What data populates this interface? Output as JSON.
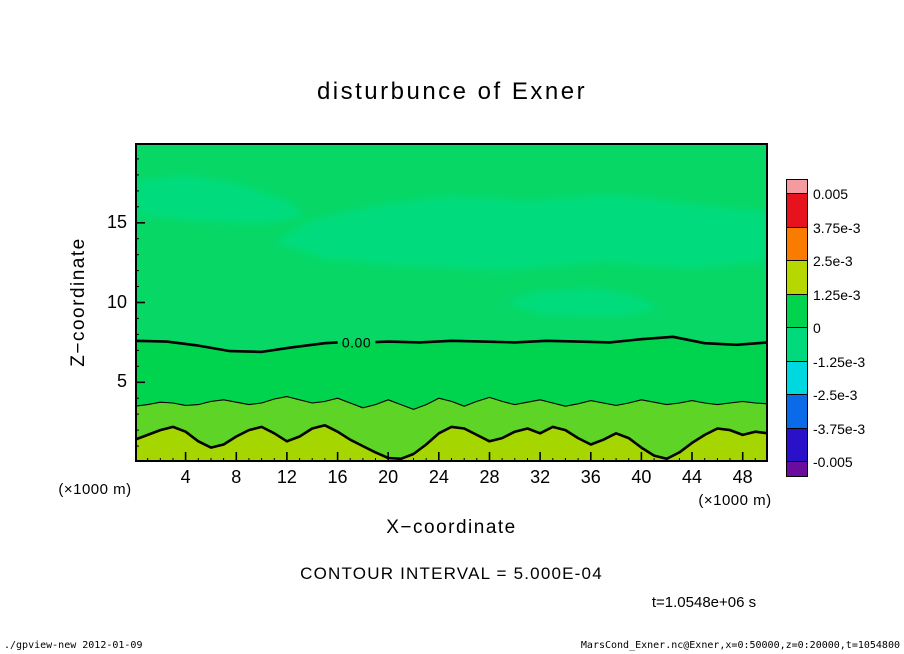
{
  "page": {
    "background": "#ffffff"
  },
  "footer": {
    "left": "./gpview-new  2012-01-09",
    "right": "MarsCond_Exner.nc@Exner,x=0:50000,z=0:20000,t=1054800"
  },
  "chart_data": {
    "type": "heatmap",
    "title": "disturbunce of Exner",
    "xlabel": "X−coordinate",
    "ylabel": "Z−coordinate",
    "unit_label": "(×1000 m)",
    "contour_interval_label": "CONTOUR INTERVAL = 5.000E-04",
    "time_label": "t=1.0548e+06 s",
    "xlim": [
      0,
      50
    ],
    "ylim": [
      0,
      20
    ],
    "x_ticks": [
      4,
      8,
      12,
      16,
      20,
      24,
      28,
      32,
      36,
      40,
      44,
      48
    ],
    "y_ticks": [
      5,
      10,
      15
    ],
    "grid": false,
    "legend_position": "right-colorbar",
    "field_colors": {
      "upper": "#07d765",
      "patch": "#00dc7d",
      "lower": "#00d44f",
      "mid_band": "#5ed526",
      "bottom_band": "#a6d600"
    },
    "colorbar": {
      "cap_top": "#f59aa0",
      "cell_colors": [
        "#e6131f",
        "#f97c00",
        "#b6d800",
        "#00d44f",
        "#00da7c",
        "#00d8e0",
        "#0a6ae8",
        "#2a10c8"
      ],
      "cap_bottom": "#6a0d9e",
      "labels": [
        "0.005",
        "3.75e-3",
        "2.5e-3",
        "1.25e-3",
        "0",
        "-1.25e-3",
        "-2.5e-3",
        "-3.75e-3",
        "-0.005"
      ],
      "cap_height": 14,
      "cell_height": 33.5
    },
    "contour_labels": [
      {
        "text": "0.00",
        "x": 17.5,
        "z": 7.5
      }
    ],
    "contours": {
      "zero": {
        "level": 0,
        "label_gap": [
          16,
          19
        ],
        "points": [
          [
            0,
            7.6
          ],
          [
            2.5,
            7.55
          ],
          [
            5,
            7.3
          ],
          [
            7.5,
            6.95
          ],
          [
            10,
            6.9
          ],
          [
            12.5,
            7.2
          ],
          [
            15,
            7.45
          ],
          [
            16,
            7.5
          ],
          [
            17.5,
            7.5
          ],
          [
            19,
            7.52
          ],
          [
            20,
            7.55
          ],
          [
            22.5,
            7.5
          ],
          [
            25,
            7.6
          ],
          [
            27.5,
            7.55
          ],
          [
            30,
            7.5
          ],
          [
            32.5,
            7.6
          ],
          [
            35,
            7.55
          ],
          [
            37.5,
            7.5
          ],
          [
            40,
            7.7
          ],
          [
            42.5,
            7.85
          ],
          [
            45,
            7.45
          ],
          [
            47.5,
            7.35
          ],
          [
            50,
            7.5
          ]
        ]
      },
      "thin": {
        "level": 0.0005,
        "x_start": 0,
        "x_step": 1,
        "z": [
          3.5,
          3.6,
          3.75,
          3.7,
          3.55,
          3.6,
          3.8,
          3.9,
          3.75,
          3.6,
          3.7,
          3.95,
          4.1,
          3.9,
          3.7,
          3.8,
          4.0,
          3.7,
          3.4,
          3.6,
          3.9,
          3.6,
          3.3,
          3.6,
          4.0,
          3.8,
          3.5,
          3.8,
          4.05,
          3.8,
          3.6,
          3.75,
          3.9,
          3.7,
          3.5,
          3.65,
          3.85,
          3.7,
          3.55,
          3.7,
          3.9,
          3.75,
          3.6,
          3.7,
          3.85,
          3.7,
          3.6,
          3.7,
          3.8,
          3.7,
          3.65
        ]
      },
      "bottom": {
        "level": 0.001,
        "x_start": 0,
        "x_step": 1,
        "z": [
          1.4,
          1.7,
          2.0,
          2.2,
          1.9,
          1.3,
          0.9,
          1.1,
          1.6,
          2.0,
          2.2,
          1.8,
          1.3,
          1.6,
          2.1,
          2.3,
          1.9,
          1.4,
          1.0,
          0.6,
          0.25,
          0.2,
          0.5,
          1.1,
          1.8,
          2.2,
          2.1,
          1.7,
          1.3,
          1.5,
          1.9,
          2.1,
          1.8,
          2.2,
          2.0,
          1.5,
          1.1,
          1.4,
          1.8,
          1.5,
          0.9,
          0.4,
          0.2,
          0.6,
          1.2,
          1.7,
          2.1,
          2.0,
          1.7,
          1.9,
          1.8
        ]
      }
    },
    "patches": [
      [
        [
          11,
          13.8
        ],
        [
          14,
          15.2
        ],
        [
          19,
          16.1
        ],
        [
          25,
          16.7
        ],
        [
          31,
          16.4
        ],
        [
          38,
          16.8
        ],
        [
          45,
          16.1
        ],
        [
          50,
          15.7
        ],
        [
          50,
          12.6
        ],
        [
          44,
          12.1
        ],
        [
          37,
          12.5
        ],
        [
          29,
          12.0
        ],
        [
          21,
          12.3
        ],
        [
          15,
          12.7
        ]
      ],
      [
        [
          0,
          17.6
        ],
        [
          4,
          18.0
        ],
        [
          8,
          17.5
        ],
        [
          12,
          16.4
        ],
        [
          13.5,
          15.4
        ],
        [
          10,
          14.9
        ],
        [
          5,
          15.1
        ],
        [
          0,
          15.5
        ]
      ],
      [
        [
          29,
          10.0
        ],
        [
          32,
          10.7
        ],
        [
          36,
          10.9
        ],
        [
          39.5,
          10.4
        ],
        [
          41.5,
          9.6
        ],
        [
          38,
          9.1
        ],
        [
          32.5,
          9.2
        ]
      ]
    ]
  }
}
